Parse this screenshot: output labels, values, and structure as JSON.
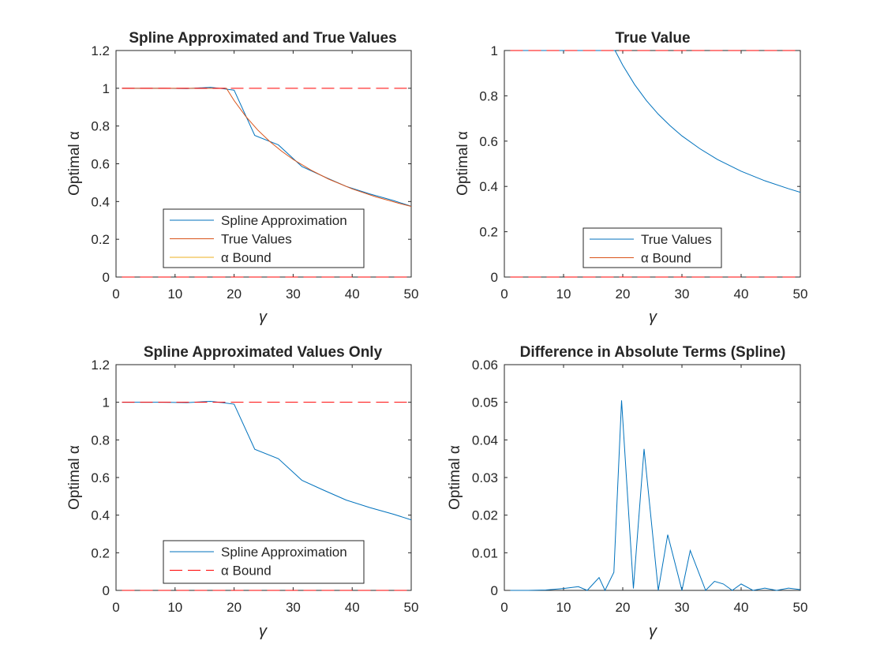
{
  "chart_data": [
    {
      "type": "line",
      "title": "Spline Approximated and True Values",
      "xlabel": "γ",
      "ylabel": "Optimal α",
      "xlim": [
        0,
        50
      ],
      "ylim": [
        0,
        1.2
      ],
      "xticks": [
        0,
        10,
        20,
        30,
        40,
        50
      ],
      "yticks": [
        0,
        0.2,
        0.4,
        0.6,
        0.8,
        1,
        1.2
      ],
      "grid": false,
      "legend_position": "bottom-center",
      "series": [
        {
          "name": "Spline Approximation",
          "color": "#0072BD",
          "style": "solid",
          "x": [
            1,
            4,
            8,
            12,
            16,
            18,
            20,
            23.5,
            27.5,
            31.5,
            35,
            39,
            43,
            47,
            50
          ],
          "y": [
            1,
            1,
            1,
            0.998,
            1.005,
            0.998,
            0.99,
            0.75,
            0.7,
            0.585,
            0.535,
            0.48,
            0.44,
            0.405,
            0.375
          ]
        },
        {
          "name": "True Values",
          "color": "#D95319",
          "style": "solid",
          "x": [
            1,
            5,
            10,
            15,
            18.7,
            20,
            22,
            24,
            26,
            28,
            30,
            33,
            36,
            40,
            44,
            48,
            50
          ],
          "y": [
            1,
            1,
            1,
            1,
            1,
            0.935,
            0.85,
            0.779,
            0.719,
            0.668,
            0.623,
            0.567,
            0.519,
            0.467,
            0.425,
            0.39,
            0.374
          ]
        },
        {
          "name": "α Bound",
          "color": "#EDB120",
          "style": "solid",
          "x": [],
          "y": []
        },
        {
          "name": "",
          "color": "#FF0000",
          "style": "dashed",
          "x": [
            1,
            50
          ],
          "y": [
            1,
            1
          ]
        },
        {
          "name": "",
          "color": "#FF0000",
          "style": "dashed",
          "x": [
            1,
            50
          ],
          "y": [
            0,
            0
          ]
        }
      ]
    },
    {
      "type": "line",
      "title": "True Value",
      "xlabel": "γ",
      "ylabel": "Optimal α",
      "xlim": [
        0,
        50
      ],
      "ylim": [
        0,
        1
      ],
      "xticks": [
        0,
        10,
        20,
        30,
        40,
        50
      ],
      "yticks": [
        0,
        0.2,
        0.4,
        0.6,
        0.8,
        1
      ],
      "grid": false,
      "legend_position": "bottom-center",
      "series": [
        {
          "name": "True Values",
          "color": "#0072BD",
          "style": "solid",
          "x": [
            1,
            5,
            10,
            15,
            18.7,
            20,
            22,
            24,
            26,
            28,
            30,
            33,
            36,
            40,
            44,
            48,
            50
          ],
          "y": [
            1,
            1,
            1,
            1,
            1,
            0.935,
            0.85,
            0.779,
            0.719,
            0.668,
            0.623,
            0.567,
            0.519,
            0.467,
            0.425,
            0.39,
            0.374
          ]
        },
        {
          "name": "α Bound",
          "color": "#D95319",
          "style": "solid",
          "x": [],
          "y": []
        },
        {
          "name": "",
          "color": "#FF0000",
          "style": "dashed",
          "x": [
            1,
            50
          ],
          "y": [
            1,
            1
          ]
        },
        {
          "name": "",
          "color": "#FF0000",
          "style": "dashed",
          "x": [
            1,
            50
          ],
          "y": [
            0,
            0
          ]
        }
      ]
    },
    {
      "type": "line",
      "title": "Spline Approximated Values Only",
      "xlabel": "γ",
      "ylabel": "Optimal α",
      "xlim": [
        0,
        50
      ],
      "ylim": [
        0,
        1.2
      ],
      "xticks": [
        0,
        10,
        20,
        30,
        40,
        50
      ],
      "yticks": [
        0,
        0.2,
        0.4,
        0.6,
        0.8,
        1,
        1.2
      ],
      "grid": false,
      "legend_position": "bottom-center",
      "series": [
        {
          "name": "Spline Approximation",
          "color": "#0072BD",
          "style": "solid",
          "x": [
            1,
            4,
            8,
            12,
            16,
            18,
            20,
            23.5,
            27.5,
            31.5,
            35,
            39,
            43,
            47,
            50
          ],
          "y": [
            1,
            1,
            1,
            0.998,
            1.005,
            0.998,
            0.99,
            0.75,
            0.7,
            0.585,
            0.535,
            0.48,
            0.44,
            0.405,
            0.375
          ]
        },
        {
          "name": "α Bound",
          "color": "#FF0000",
          "style": "dashed",
          "x": [
            1,
            50
          ],
          "y": [
            1,
            1
          ]
        },
        {
          "name": "",
          "color": "#FF0000",
          "style": "dashed",
          "x": [
            1,
            50
          ],
          "y": [
            0,
            0
          ]
        }
      ]
    },
    {
      "type": "line",
      "title": "Difference in Absolute Terms (Spline)",
      "xlabel": "γ",
      "ylabel": "Optimal α",
      "xlim": [
        0,
        50
      ],
      "ylim": [
        0,
        0.06
      ],
      "xticks": [
        0,
        10,
        20,
        30,
        40,
        50
      ],
      "yticks": [
        0,
        0.01,
        0.02,
        0.03,
        0.04,
        0.05,
        0.06
      ],
      "grid": false,
      "series": [
        {
          "name": "",
          "color": "#0072BD",
          "style": "solid",
          "x": [
            1,
            4,
            7,
            10,
            12.5,
            14,
            16,
            17,
            18.5,
            19.8,
            21.8,
            23.6,
            26,
            27.6,
            30,
            31.4,
            34,
            35.5,
            37,
            38.5,
            40,
            42,
            44,
            46,
            48,
            50
          ],
          "y": [
            0,
            0,
            0.0001,
            0.0005,
            0.001,
            0,
            0.0034,
            0,
            0.0048,
            0.0505,
            0.0005,
            0.0376,
            0,
            0.0148,
            0,
            0.0106,
            0,
            0.0024,
            0.0017,
            0,
            0.0017,
            0,
            0.0006,
            0,
            0.0006,
            0.0002
          ]
        }
      ]
    }
  ]
}
